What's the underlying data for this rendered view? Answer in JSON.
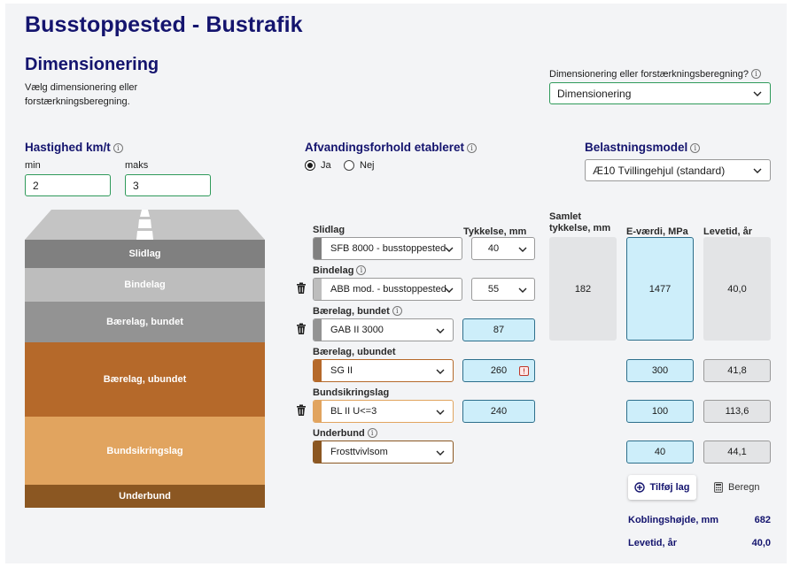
{
  "header": {
    "title": "Busstoppested - Bustrafik"
  },
  "section": {
    "title": "Dimensionering",
    "description": "Vælg dimensionering eller forstærkningsberegning."
  },
  "mode": {
    "label": "Dimensionering eller forstærkningsberegning?",
    "value": "Dimensionering"
  },
  "speed": {
    "label": "Hastighed km/t",
    "min_label": "min",
    "min_value": "2",
    "max_label": "maks",
    "max_value": "3"
  },
  "drainage": {
    "label": "Afvandingsforhold etableret",
    "options": [
      "Ja",
      "Nej"
    ],
    "selected": "Ja"
  },
  "load_model": {
    "label": "Belastningsmodel",
    "value": "Æ10 Tvillingehjul (standard)"
  },
  "road_diagram": {
    "layers": [
      {
        "name": "Slidlag",
        "color": "#808080"
      },
      {
        "name": "Bindelag",
        "color": "#bdbdbd"
      },
      {
        "name": "Bærelag, bundet",
        "color": "#939393"
      },
      {
        "name": "Bærelag, ubundet",
        "color": "#b5692a"
      },
      {
        "name": "Bundsikringslag",
        "color": "#e1a45f"
      },
      {
        "name": "Underbund",
        "color": "#8b5722"
      }
    ]
  },
  "columns": {
    "thickness": "Tykkelse, mm",
    "total_thickness": "Samlet tykkelse, mm",
    "e_value": "E-værdi, MPa",
    "lifetime": "Levetid, år"
  },
  "layers": [
    {
      "label": "Slidlag",
      "material": "SFB 8000 - busstoppested",
      "thickness": "40",
      "swatch": "#808080"
    },
    {
      "label": "Bindelag",
      "material": "ABB mod. - busstoppested",
      "thickness": "55",
      "swatch": "#bdbdbd"
    },
    {
      "label": "Bærelag, bundet",
      "material": "GAB II 3000",
      "thickness": "87",
      "swatch": "#939393"
    },
    {
      "label": "Bærelag, ubundet",
      "material": "SG II",
      "thickness": "260",
      "e_value": "300",
      "lifetime": "41,8",
      "swatch": "#b5692a"
    },
    {
      "label": "Bundsikringslag",
      "material": "BL II U<=3",
      "thickness": "240",
      "e_value": "100",
      "lifetime": "113,6",
      "swatch": "#e1a45f"
    },
    {
      "label": "Underbund",
      "material": "Frosttvivlsom",
      "e_value": "40",
      "lifetime": "44,1",
      "swatch": "#8b5722"
    }
  ],
  "bound_group": {
    "total_thickness": "182",
    "e_value": "1477",
    "lifetime": "40,0"
  },
  "actions": {
    "add_layer": "Tilføj lag",
    "calculate": "Beregn"
  },
  "summary": {
    "coupling_label": "Koblingshøjde, mm",
    "coupling_value": "682",
    "lifetime_label": "Levetid, år",
    "lifetime_value": "40,0"
  },
  "colors": {
    "navy": "#14146e",
    "green_border": "#2f9a5a",
    "blue_fill": "#cdeefa",
    "grey_fill": "#e3e4e6"
  },
  "icons": [
    "info-icon",
    "chevron-down-icon",
    "trash-icon",
    "plus-circle-icon",
    "calculator-icon",
    "warning-icon"
  ]
}
